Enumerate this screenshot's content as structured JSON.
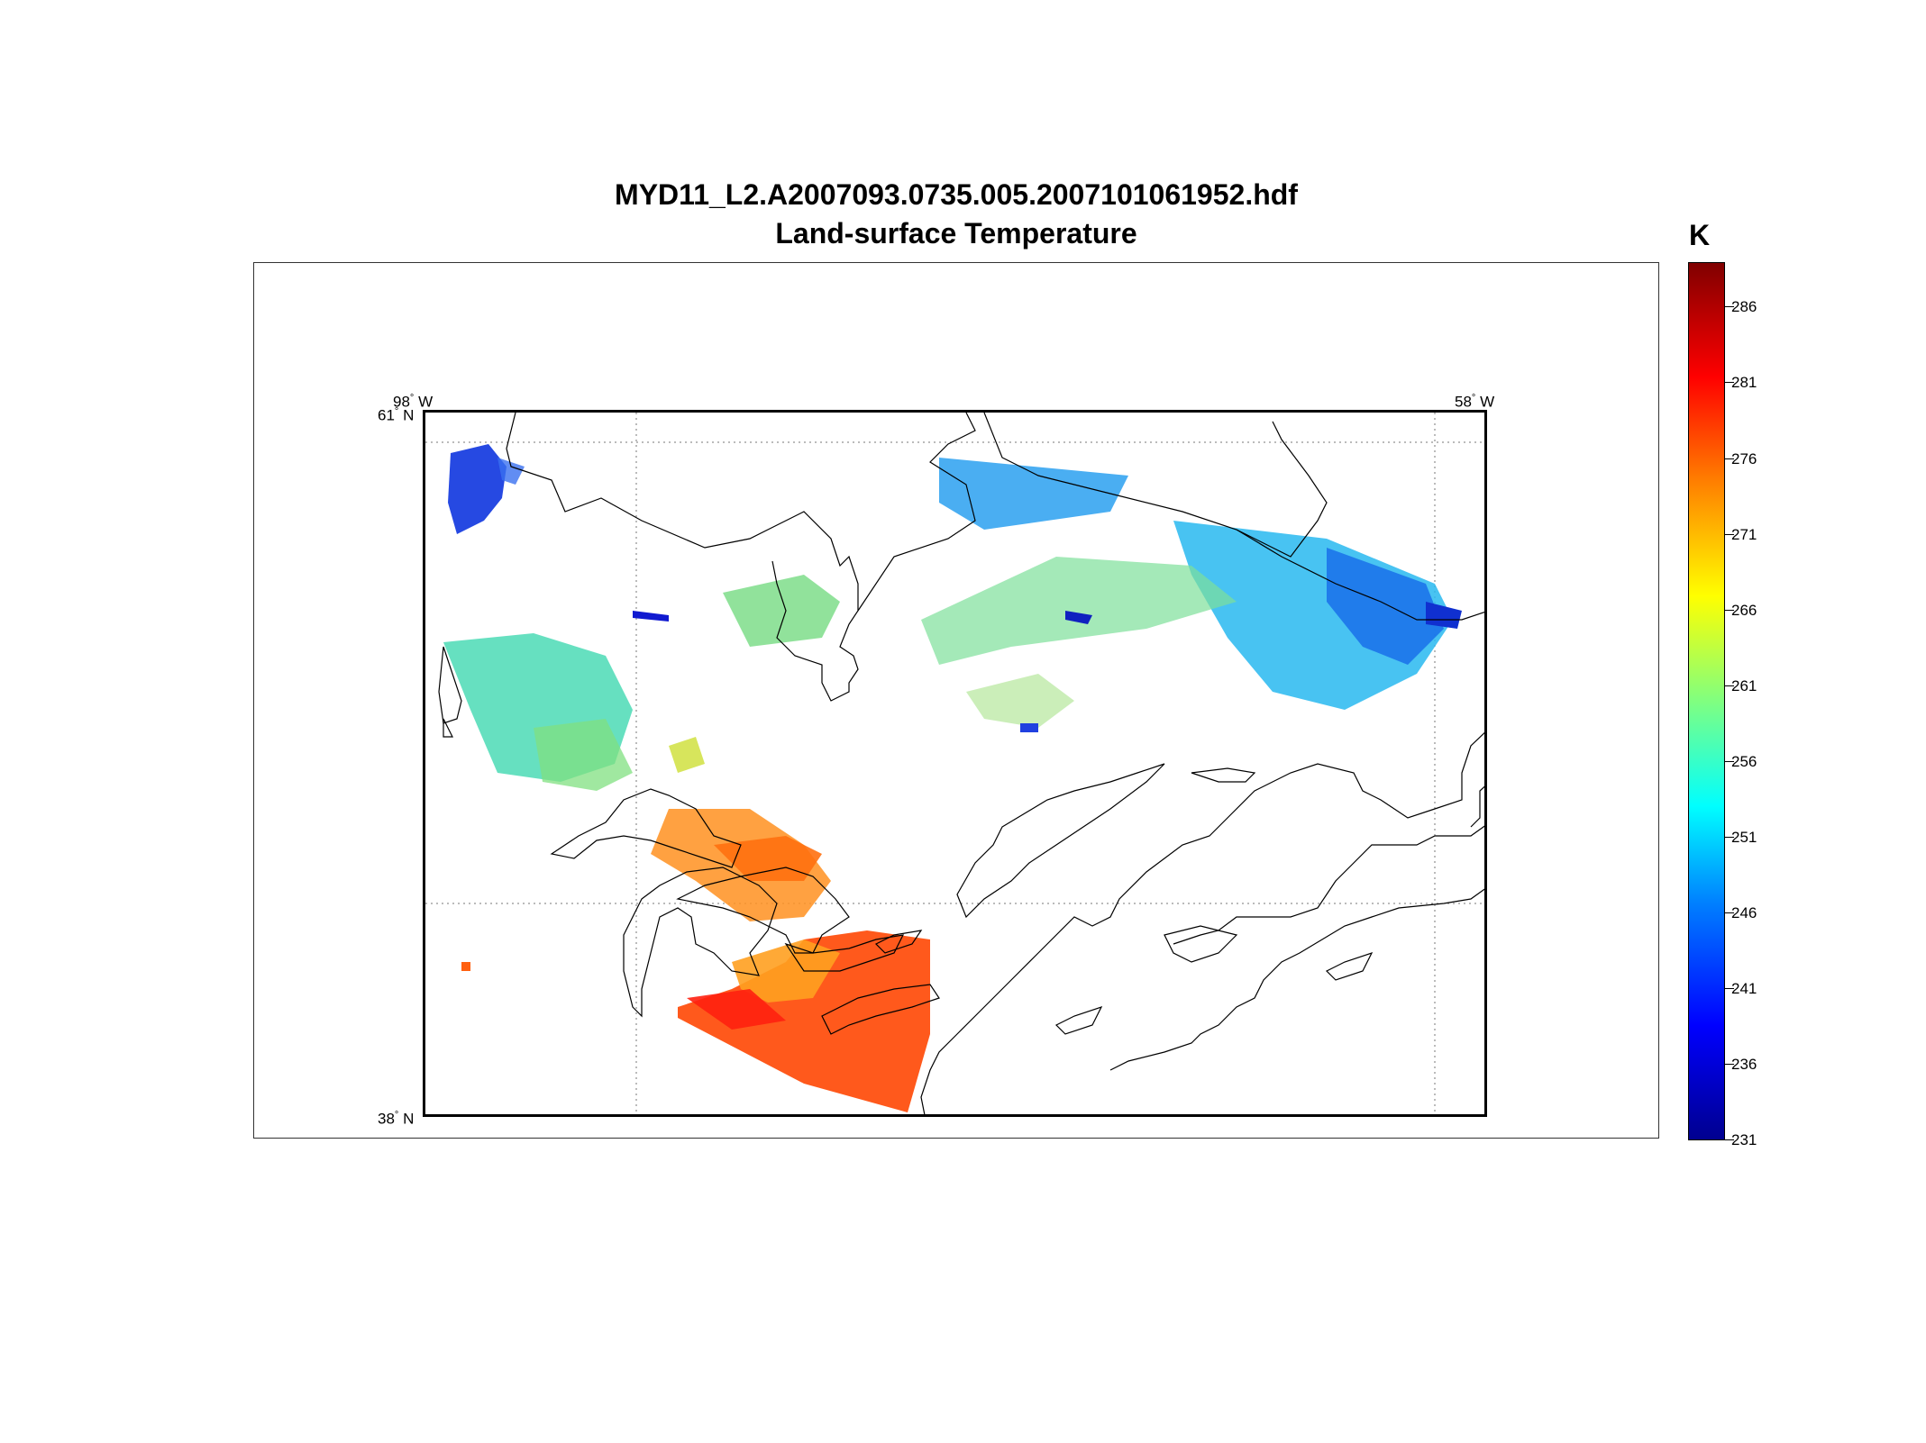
{
  "title": "MYD11_L2.A2007093.0735.005.2007101061952.hdf",
  "subtitle": "Land-surface Temperature",
  "colorbar": {
    "unit": "K",
    "ticks": [
      "286",
      "281",
      "276",
      "271",
      "266",
      "261",
      "256",
      "251",
      "246",
      "241",
      "236",
      "231"
    ],
    "range": [
      231,
      289
    ],
    "colormap": "jet"
  },
  "map": {
    "top_left_lon_label": "98",
    "top_left_lon_hem": "W",
    "top_right_lon_label": "58",
    "top_right_lon_hem": "W",
    "top_lat_label": "61",
    "top_lat_hem": "N",
    "bottom_lat_label": "38",
    "bottom_lat_hem": "N",
    "lon_range": [
      -98,
      -58
    ],
    "lat_range": [
      38,
      61
    ],
    "gridlines": "dotted",
    "coastlines": true
  },
  "colors": {
    "cold": "#0000ff",
    "cool": "#00ffff",
    "mild": "#80ff80",
    "warm": "#ff8000",
    "hot": "#ff0000"
  }
}
